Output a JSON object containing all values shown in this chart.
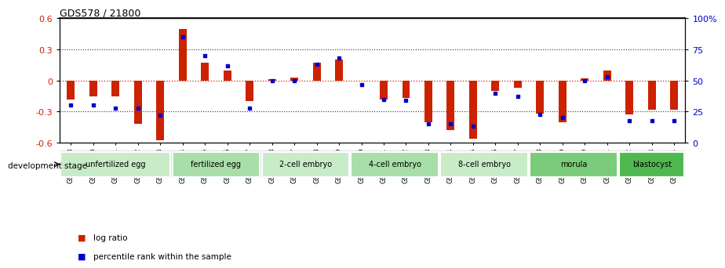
{
  "title": "GDS578 / 21800",
  "samples": [
    "GSM14658",
    "GSM14660",
    "GSM14661",
    "GSM14662",
    "GSM14663",
    "GSM14664",
    "GSM14665",
    "GSM14666",
    "GSM14667",
    "GSM14668",
    "GSM14677",
    "GSM14678",
    "GSM14679",
    "GSM14680",
    "GSM14681",
    "GSM14682",
    "GSM14683",
    "GSM14684",
    "GSM14685",
    "GSM14686",
    "GSM14687",
    "GSM14688",
    "GSM14689",
    "GSM14690",
    "GSM14691",
    "GSM14692",
    "GSM14693",
    "GSM14694"
  ],
  "log_ratio": [
    -0.18,
    -0.15,
    -0.15,
    -0.42,
    -0.58,
    0.5,
    0.17,
    0.1,
    -0.2,
    0.01,
    0.03,
    0.17,
    0.2,
    0.0,
    -0.18,
    -0.17,
    -0.4,
    -0.48,
    -0.56,
    -0.1,
    -0.07,
    -0.32,
    -0.4,
    0.02,
    0.1,
    -0.33,
    -0.28,
    -0.28
  ],
  "percentile_rank": [
    30,
    30,
    28,
    28,
    22,
    85,
    70,
    62,
    28,
    50,
    50,
    63,
    68,
    47,
    35,
    34,
    15,
    15,
    13,
    40,
    37,
    23,
    20,
    50,
    53,
    18,
    18,
    18
  ],
  "stage_groups": [
    {
      "label": "unfertilized egg",
      "start": 0,
      "end": 5,
      "color": "#c8ecc8"
    },
    {
      "label": "fertilized egg",
      "start": 5,
      "end": 9,
      "color": "#a8dfa8"
    },
    {
      "label": "2-cell embryo",
      "start": 9,
      "end": 13,
      "color": "#c8ecc8"
    },
    {
      "label": "4-cell embryo",
      "start": 13,
      "end": 17,
      "color": "#a8dfa8"
    },
    {
      "label": "8-cell embryo",
      "start": 17,
      "end": 21,
      "color": "#c8ecc8"
    },
    {
      "label": "morula",
      "start": 21,
      "end": 25,
      "color": "#7acc7a"
    },
    {
      "label": "blastocyst",
      "start": 25,
      "end": 28,
      "color": "#50b850"
    }
  ],
  "ylim": [
    -0.6,
    0.6
  ],
  "yticks_left": [
    -0.6,
    -0.3,
    0.0,
    0.3,
    0.6
  ],
  "yticks_right": [
    0,
    25,
    50,
    75,
    100
  ],
  "bar_color": "#cc2200",
  "dot_color": "#0000cc",
  "hline0_color": "#cc2200",
  "hline_color": "#333333",
  "legend_log_ratio_color": "#cc2200",
  "legend_percentile_color": "#0000cc",
  "bg_color": "#ffffff",
  "xtick_bg": "#d0d0d0"
}
